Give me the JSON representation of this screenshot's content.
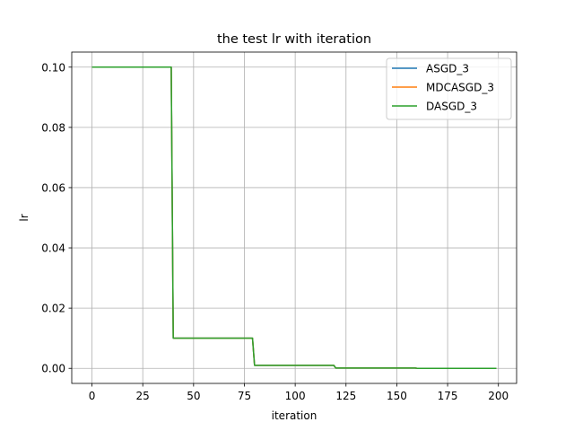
{
  "chart_data": {
    "type": "line",
    "title": "the test lr with iteration",
    "xlabel": "iteration",
    "ylabel": "lr",
    "xlim": [
      -9.95,
      208.95
    ],
    "ylim": [
      -0.005,
      0.105
    ],
    "xticks": [
      0,
      25,
      50,
      75,
      100,
      125,
      150,
      175,
      200
    ],
    "yticks": [
      0.0,
      0.02,
      0.04,
      0.06,
      0.08,
      0.1
    ],
    "ytick_labels": [
      "0.00",
      "0.02",
      "0.04",
      "0.06",
      "0.08",
      "0.10"
    ],
    "grid": true,
    "legend": "top-right",
    "series": [
      {
        "name": "ASGD_3",
        "color": "#1f77b4",
        "x": [
          0,
          39,
          40,
          79,
          80,
          119,
          120,
          159,
          160,
          199
        ],
        "y": [
          0.1,
          0.1,
          0.01,
          0.01,
          0.001,
          0.001,
          0.0001,
          0.0001,
          1e-05,
          1e-05
        ]
      },
      {
        "name": "MDCASGD_3",
        "color": "#ff7f0e",
        "x": [
          0,
          39,
          40,
          79,
          80,
          119,
          120,
          159,
          160,
          199
        ],
        "y": [
          0.1,
          0.1,
          0.01,
          0.01,
          0.001,
          0.001,
          0.0001,
          0.0001,
          1e-05,
          1e-05
        ]
      },
      {
        "name": "DASGD_3",
        "color": "#2ca02c",
        "x": [
          0,
          39,
          40,
          79,
          80,
          119,
          120,
          159,
          160,
          199
        ],
        "y": [
          0.1,
          0.1,
          0.01,
          0.01,
          0.001,
          0.001,
          0.0001,
          0.0001,
          1e-05,
          1e-05
        ]
      }
    ]
  }
}
